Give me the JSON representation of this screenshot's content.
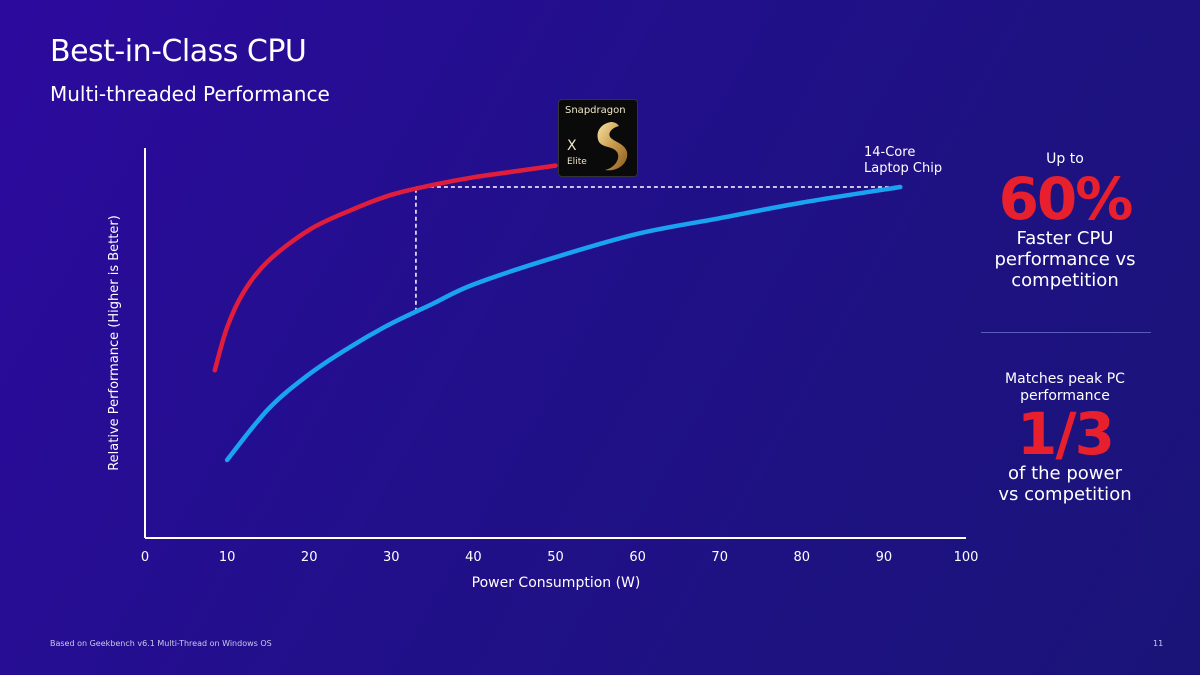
{
  "slide": {
    "title": "Best-in-Class CPU",
    "subtitle": "Multi-threaded Performance",
    "footnote": "Based on Geekbench v6.1 Multi-Thread on Windows OS",
    "page_number": "11"
  },
  "chip_logo": {
    "brand": "Snapdragon",
    "model": "X",
    "variant": "Elite",
    "icon": "snapdragon-dragon-icon"
  },
  "callout_right": {
    "top_prefix": "Up to",
    "top_value": "60%",
    "top_desc_1": "Faster CPU",
    "top_desc_2": "performance vs",
    "top_desc_3": "competition",
    "bottom_prefix_1": "Matches peak PC",
    "bottom_prefix_2": "performance",
    "bottom_value": "1/3",
    "bottom_desc_1": "of the power",
    "bottom_desc_2": "vs competition"
  },
  "chart_data": {
    "type": "line",
    "xlabel": "Power Consumption (W)",
    "ylabel": "Relative Performance (Higher is Better)",
    "xlim": [
      0,
      100
    ],
    "ylim": [
      0,
      100
    ],
    "x_ticks": [
      0,
      10,
      20,
      30,
      40,
      50,
      60,
      70,
      80,
      90,
      100
    ],
    "grid": false,
    "series": [
      {
        "name": "Snapdragon X Elite",
        "color": "#e01e3c",
        "x": [
          8.5,
          10,
          12,
          15,
          20,
          25,
          30,
          35,
          40,
          45,
          50
        ],
        "y": [
          43,
          54,
          63,
          71,
          79,
          84,
          88,
          90.5,
          92.5,
          94,
          95.5
        ]
      },
      {
        "name": "14-Core Laptop Chip",
        "color": "#1aa3f0",
        "x": [
          10,
          15,
          20,
          25,
          30,
          35,
          40,
          50,
          60,
          70,
          80,
          92
        ],
        "y": [
          20,
          33,
          42,
          49,
          55,
          60,
          65,
          72,
          78,
          82,
          86,
          90
        ]
      }
    ],
    "annotations": [
      {
        "type": "dashed-hline",
        "y": 90,
        "x_from": 33,
        "x_to": 92
      },
      {
        "type": "dashed-vline",
        "x": 33,
        "y_from": 58,
        "y_to": 90
      },
      {
        "type": "series-label",
        "text_1": "14-Core",
        "text_2": "Laptop Chip"
      }
    ]
  }
}
